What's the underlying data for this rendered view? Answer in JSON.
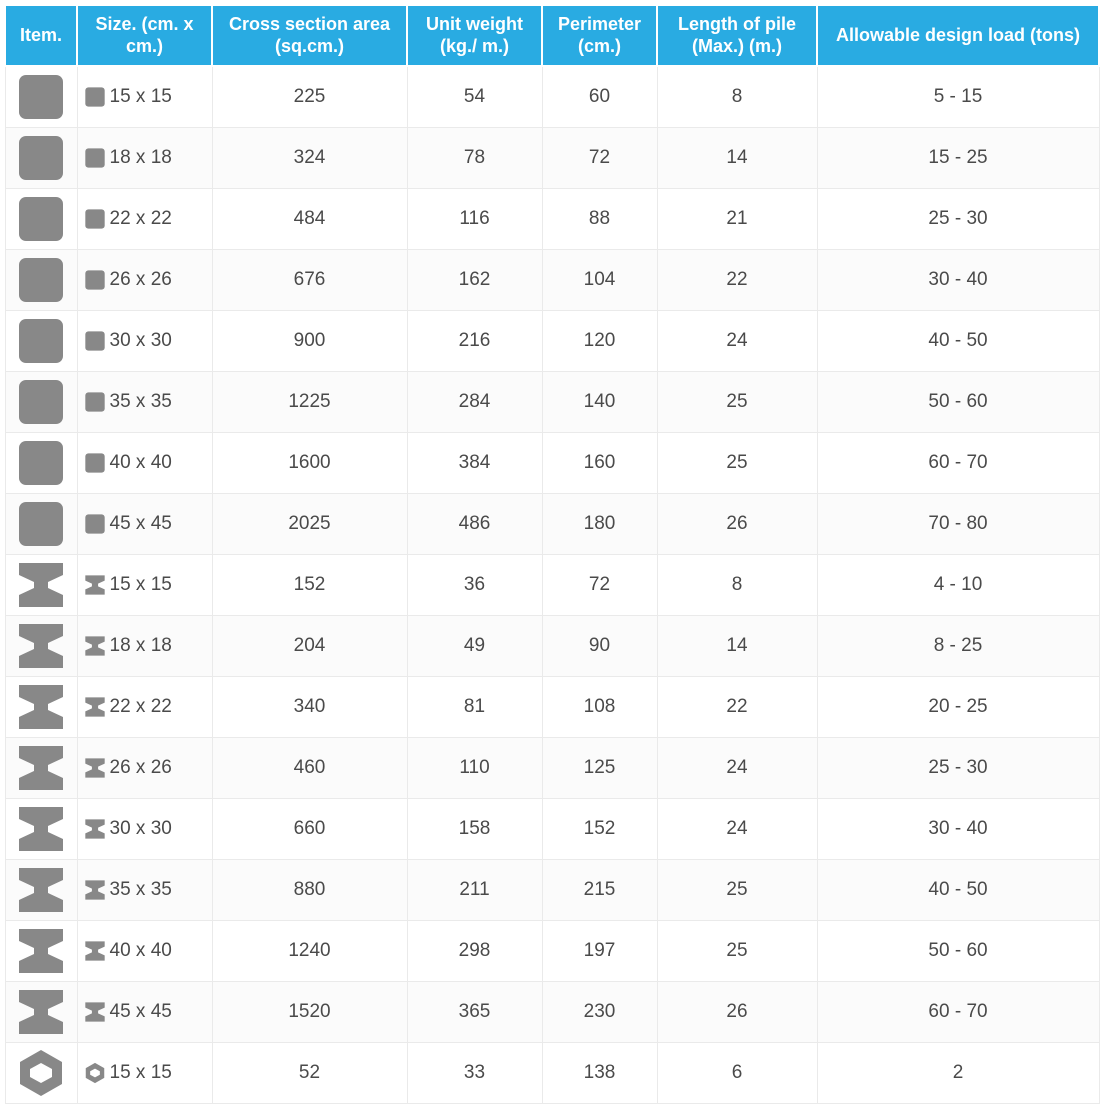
{
  "table": {
    "header_bg": "#29abe2",
    "header_fg": "#ffffff",
    "border_color": "#eaeaea",
    "text_color": "#4a4a4a",
    "icon_fill": "#888888",
    "columns": [
      {
        "key": "item",
        "label": "Item."
      },
      {
        "key": "size",
        "label": "Size.\n(cm. x cm.)"
      },
      {
        "key": "area",
        "label": "Cross section area\n(sq.cm.)"
      },
      {
        "key": "uw",
        "label": "Unit weight\n(kg./ m.)"
      },
      {
        "key": "peri",
        "label": "Perimeter\n(cm.)"
      },
      {
        "key": "len",
        "label": "Length of pile\n(Max.) (m.)"
      },
      {
        "key": "load",
        "label": "Allowable design load\n(tons)"
      }
    ],
    "rows": [
      {
        "shape": "square",
        "size": "15 x 15",
        "area": "225",
        "uw": "54",
        "peri": "60",
        "len": "8",
        "load": "5 - 15"
      },
      {
        "shape": "square",
        "size": "18 x 18",
        "area": "324",
        "uw": "78",
        "peri": "72",
        "len": "14",
        "load": "15 - 25"
      },
      {
        "shape": "square",
        "size": "22 x 22",
        "area": "484",
        "uw": "116",
        "peri": "88",
        "len": "21",
        "load": "25 - 30"
      },
      {
        "shape": "square",
        "size": "26 x 26",
        "area": "676",
        "uw": "162",
        "peri": "104",
        "len": "22",
        "load": "30 - 40"
      },
      {
        "shape": "square",
        "size": "30 x 30",
        "area": "900",
        "uw": "216",
        "peri": "120",
        "len": "24",
        "load": "40 - 50"
      },
      {
        "shape": "square",
        "size": "35 x 35",
        "area": "1225",
        "uw": "284",
        "peri": "140",
        "len": "25",
        "load": "50 - 60"
      },
      {
        "shape": "square",
        "size": "40 x 40",
        "area": "1600",
        "uw": "384",
        "peri": "160",
        "len": "25",
        "load": "60 - 70"
      },
      {
        "shape": "square",
        "size": "45 x 45",
        "area": "2025",
        "uw": "486",
        "peri": "180",
        "len": "26",
        "load": "70 - 80"
      },
      {
        "shape": "ibeam",
        "size": "15 x 15",
        "area": "152",
        "uw": "36",
        "peri": "72",
        "len": "8",
        "load": "4 - 10"
      },
      {
        "shape": "ibeam",
        "size": "18 x 18",
        "area": "204",
        "uw": "49",
        "peri": "90",
        "len": "14",
        "load": "8 - 25"
      },
      {
        "shape": "ibeam",
        "size": "22 x 22",
        "area": "340",
        "uw": "81",
        "peri": "108",
        "len": "22",
        "load": "20 - 25"
      },
      {
        "shape": "ibeam",
        "size": "26 x 26",
        "area": "460",
        "uw": "110",
        "peri": "125",
        "len": "24",
        "load": "25 - 30"
      },
      {
        "shape": "ibeam",
        "size": "30 x 30",
        "area": "660",
        "uw": "158",
        "peri": "152",
        "len": "24",
        "load": "30 - 40"
      },
      {
        "shape": "ibeam",
        "size": "35 x 35",
        "area": "880",
        "uw": "211",
        "peri": "215",
        "len": "25",
        "load": "40 - 50"
      },
      {
        "shape": "ibeam",
        "size": "40 x 40",
        "area": "1240",
        "uw": "298",
        "peri": "197",
        "len": "25",
        "load": "50 - 60"
      },
      {
        "shape": "ibeam",
        "size": "45 x 45",
        "area": "1520",
        "uw": "365",
        "peri": "230",
        "len": "26",
        "load": "60 - 70"
      },
      {
        "shape": "hex",
        "size": "15 x 15",
        "area": "52",
        "uw": "33",
        "peri": "138",
        "len": "6",
        "load": "2"
      }
    ]
  }
}
